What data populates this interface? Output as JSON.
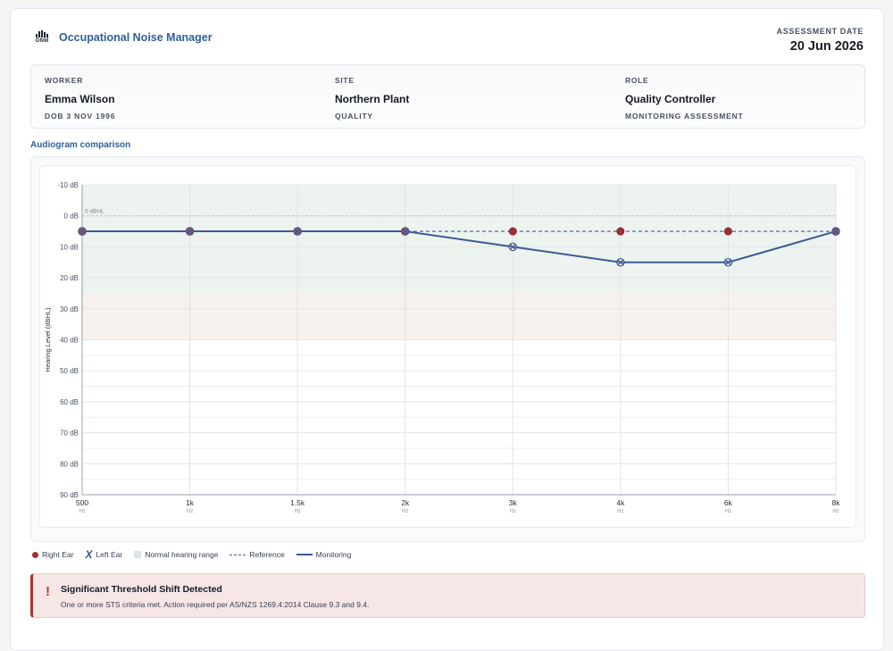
{
  "header": {
    "logo_text": "ONM",
    "app_name": "Occupational Noise Manager",
    "assessment_label": "ASSESSMENT DATE",
    "assessment_value": "20 Jun 2026"
  },
  "info": {
    "worker": {
      "label": "WORKER",
      "value": "Emma Wilson",
      "sub": "DOB 3 NOV 1996"
    },
    "site": {
      "label": "SITE",
      "value": "Northern Plant",
      "sub": "QUALITY"
    },
    "role": {
      "label": "ROLE",
      "value": "Quality Controller",
      "sub": "MONITORING ASSESSMENT"
    }
  },
  "section_title": "Audiogram comparison",
  "chart_data": {
    "type": "line",
    "title": "",
    "xlabel": "",
    "ylabel": "Hearing Level (dBHL)",
    "categories": [
      "500",
      "1k",
      "1.5k",
      "2k",
      "3k",
      "4k",
      "6k",
      "8k"
    ],
    "x_unit": "Hz",
    "y_ticks": [
      "-10 dB",
      "0 dB",
      "10 dB",
      "20 dB",
      "30 dB",
      "40 dB",
      "50 dB",
      "60 dB",
      "70 dB",
      "80 dB",
      "90 dB"
    ],
    "ylim": [
      -10,
      90
    ],
    "y_inverted": true,
    "reference_line_label": "0 dBHL",
    "normal_range": [
      -10,
      25
    ],
    "mild_range": [
      25,
      40
    ],
    "series": [
      {
        "name": "Reference",
        "style": "dashed",
        "values": [
          5,
          5,
          5,
          5,
          5,
          5,
          5,
          5
        ]
      },
      {
        "name": "Monitoring",
        "style": "solid",
        "values": [
          5,
          5,
          5,
          5,
          10,
          15,
          15,
          5
        ]
      }
    ],
    "right_ear": [
      5,
      5,
      5,
      5,
      5,
      5,
      5,
      5
    ],
    "left_ear": [
      5,
      5,
      5,
      5,
      10,
      15,
      15,
      5
    ],
    "grid": true,
    "colors": {
      "line": "#3d5a96",
      "right_ear": "#a03030",
      "normal": "#edf4ef",
      "mild": "#f8f2ec"
    }
  },
  "legend": {
    "right_ear": "Right Ear",
    "left_ear": "Left Ear",
    "normal_range": "Normal hearing range",
    "reference": "Reference",
    "monitoring": "Monitoring"
  },
  "alert": {
    "icon": "!",
    "title": "Significant Threshold Shift Detected",
    "text": "One or more STS criteria met. Action required per AS/NZS 1269.4:2014 Clause 9.3 and 9.4."
  }
}
